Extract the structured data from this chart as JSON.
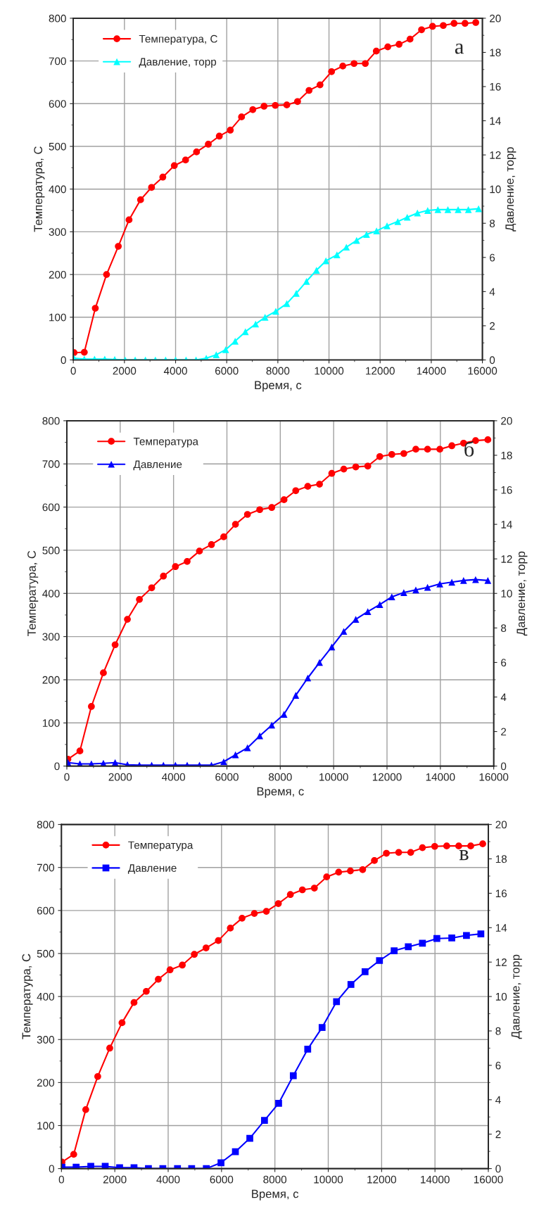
{
  "chart_data": [
    {
      "type": "line",
      "xlabel": "Время, с",
      "ylabel": "Температура, С",
      "y2label": "Давление, торр",
      "annotations": [
        "а"
      ],
      "legend": "top left",
      "grid": true,
      "xlim": [
        0,
        16000
      ],
      "xticks": [
        0,
        2000,
        4000,
        6000,
        8000,
        10000,
        12000,
        14000,
        16000
      ],
      "ylim": [
        0,
        800
      ],
      "yticks": [
        0,
        100,
        200,
        300,
        400,
        500,
        600,
        700,
        800
      ],
      "y2lim": [
        0,
        20
      ],
      "y2ticks": [
        0,
        2,
        4,
        6,
        8,
        10,
        12,
        14,
        16,
        18,
        20
      ],
      "series": [
        {
          "name": "Температура, С",
          "color": "#ff0000",
          "marker": "circle",
          "axis": "y",
          "x": [
            30,
            430,
            860,
            1300,
            1760,
            2180,
            2630,
            3060,
            3500,
            3950,
            4390,
            4820,
            5280,
            5710,
            6140,
            6580,
            7020,
            7460,
            7900,
            8350,
            8770,
            9220,
            9650,
            10100,
            10540,
            10980,
            11420,
            11850,
            12300,
            12740,
            13170,
            13620,
            14050,
            14470,
            14890,
            15320,
            15740
          ],
          "values": [
            17,
            18,
            121,
            200,
            266,
            328,
            375,
            404,
            428,
            455,
            468,
            487,
            505,
            524,
            538,
            569,
            586,
            594,
            596,
            597,
            605,
            631,
            644,
            675,
            688,
            694,
            694,
            723,
            733,
            739,
            751,
            773,
            781,
            783,
            788,
            788,
            790
          ]
        },
        {
          "name": "Давление, торр",
          "color": "#00ffff",
          "marker": "triangle",
          "axis": "y2",
          "x": [
            30,
            430,
            830,
            1230,
            1620,
            2030,
            2420,
            2820,
            3210,
            3610,
            4000,
            4410,
            4800,
            5200,
            5590,
            5960,
            6330,
            6730,
            7130,
            7500,
            7920,
            8350,
            8720,
            9120,
            9510,
            9880,
            10310,
            10680,
            11080,
            11470,
            11860,
            12270,
            12690,
            13060,
            13460,
            13860,
            14260,
            14650,
            15050,
            15450,
            15850
          ],
          "values": [
            0.1,
            0.05,
            0.05,
            0.05,
            0.03,
            0,
            0,
            0,
            0,
            0,
            0,
            0,
            0,
            0.1,
            0.3,
            0.6,
            1.1,
            1.65,
            2.1,
            2.5,
            2.85,
            3.3,
            3.9,
            4.6,
            5.25,
            5.8,
            6.15,
            6.6,
            7.0,
            7.35,
            7.55,
            7.85,
            8.1,
            8.35,
            8.6,
            8.75,
            8.8,
            8.8,
            8.8,
            8.8,
            8.85
          ]
        }
      ]
    },
    {
      "type": "line",
      "xlabel": "Время, с",
      "ylabel": "Температура, С",
      "y2label": "Давление, торр",
      "annotations": [
        "б"
      ],
      "legend": "top left",
      "grid": true,
      "xlim": [
        0,
        16000
      ],
      "xticks": [
        0,
        2000,
        4000,
        6000,
        8000,
        10000,
        12000,
        14000,
        16000
      ],
      "ylim": [
        0,
        800
      ],
      "yticks": [
        0,
        100,
        200,
        300,
        400,
        500,
        600,
        700,
        800
      ],
      "y2lim": [
        0,
        20
      ],
      "y2ticks": [
        0,
        2,
        4,
        6,
        8,
        10,
        12,
        14,
        16,
        18,
        20
      ],
      "series": [
        {
          "name": "Температура",
          "color": "#ff0000",
          "marker": "circle",
          "axis": "y",
          "x": [
            40,
            490,
            920,
            1370,
            1810,
            2270,
            2720,
            3180,
            3620,
            4070,
            4510,
            4970,
            5420,
            5880,
            6320,
            6770,
            7230,
            7680,
            8140,
            8580,
            9030,
            9470,
            9930,
            10380,
            10830,
            11280,
            11730,
            12180,
            12630,
            13080,
            13520,
            13980,
            14430,
            14870,
            15320,
            15780
          ],
          "values": [
            16,
            35,
            138,
            216,
            281,
            340,
            386,
            413,
            440,
            462,
            474,
            498,
            513,
            531,
            560,
            583,
            594,
            599,
            617,
            638,
            648,
            653,
            678,
            688,
            693,
            695,
            717,
            722,
            724,
            734,
            734,
            734,
            742,
            748,
            754,
            756
          ]
        },
        {
          "name": "Давление",
          "color": "#0000ff",
          "marker": "triangle",
          "axis": "y2",
          "x": [
            40,
            490,
            920,
            1370,
            1810,
            2270,
            2720,
            3180,
            3620,
            4070,
            4510,
            4970,
            5420,
            5880,
            6320,
            6770,
            7230,
            7680,
            8140,
            8580,
            9030,
            9470,
            9930,
            10380,
            10830,
            11280,
            11730,
            12180,
            12630,
            13080,
            13520,
            13980,
            14430,
            14870,
            15320,
            15780
          ],
          "values": [
            0.2,
            0.13,
            0.13,
            0.16,
            0.2,
            0.08,
            0.05,
            0.05,
            0.05,
            0.05,
            0.05,
            0.05,
            0.05,
            0.25,
            0.65,
            1.06,
            1.75,
            2.37,
            3.0,
            4.1,
            5.1,
            6.0,
            6.9,
            7.8,
            8.5,
            8.95,
            9.35,
            9.8,
            10.05,
            10.2,
            10.35,
            10.55,
            10.65,
            10.75,
            10.8,
            10.75
          ]
        }
      ]
    },
    {
      "type": "line",
      "xlabel": "Время, с",
      "ylabel": "Температура, С",
      "y2label": "Давление, торр",
      "annotations": [
        "в"
      ],
      "legend": "top left",
      "grid": true,
      "xlim": [
        0,
        16000
      ],
      "xticks": [
        0,
        2000,
        4000,
        6000,
        8000,
        10000,
        12000,
        14000,
        16000
      ],
      "ylim": [
        0,
        800
      ],
      "yticks": [
        0,
        100,
        200,
        300,
        400,
        500,
        600,
        700,
        800
      ],
      "y2lim": [
        0,
        20
      ],
      "y2ticks": [
        0,
        2,
        4,
        6,
        8,
        10,
        12,
        14,
        16,
        18,
        20
      ],
      "series": [
        {
          "name": "Температура",
          "color": "#ff0000",
          "marker": "circle",
          "axis": "y",
          "x": [
            20,
            460,
            910,
            1360,
            1810,
            2270,
            2720,
            3180,
            3630,
            4070,
            4530,
            4980,
            5420,
            5880,
            6330,
            6770,
            7230,
            7680,
            8130,
            8580,
            9030,
            9480,
            9940,
            10390,
            10830,
            11290,
            11730,
            12180,
            12640,
            13090,
            13530,
            13990,
            14440,
            14890,
            15340,
            15790
          ],
          "values": [
            15,
            33,
            137,
            214,
            280,
            339,
            386,
            412,
            440,
            462,
            473,
            498,
            513,
            530,
            559,
            582,
            593,
            598,
            616,
            637,
            648,
            652,
            678,
            689,
            692,
            695,
            716,
            733,
            735,
            735,
            746,
            749,
            750,
            750,
            750,
            755
          ]
        },
        {
          "name": "Давление",
          "color": "#0000ff",
          "marker": "square",
          "axis": "y2",
          "x": [
            20,
            550,
            1100,
            1640,
            2180,
            2720,
            3260,
            3800,
            4350,
            4880,
            5430,
            5980,
            6520,
            7060,
            7610,
            8140,
            8690,
            9230,
            9770,
            10310,
            10850,
            11380,
            11920,
            12470,
            13000,
            13530,
            14070,
            14630,
            15180,
            15720
          ],
          "values": [
            0.08,
            0.08,
            0.13,
            0.13,
            0.05,
            0.05,
            0,
            0,
            0,
            0,
            0,
            0.34,
            0.98,
            1.76,
            2.8,
            3.79,
            5.4,
            6.94,
            8.2,
            9.7,
            10.7,
            11.44,
            12.09,
            12.66,
            12.89,
            13.1,
            13.37,
            13.4,
            13.55,
            13.64
          ]
        }
      ]
    }
  ]
}
